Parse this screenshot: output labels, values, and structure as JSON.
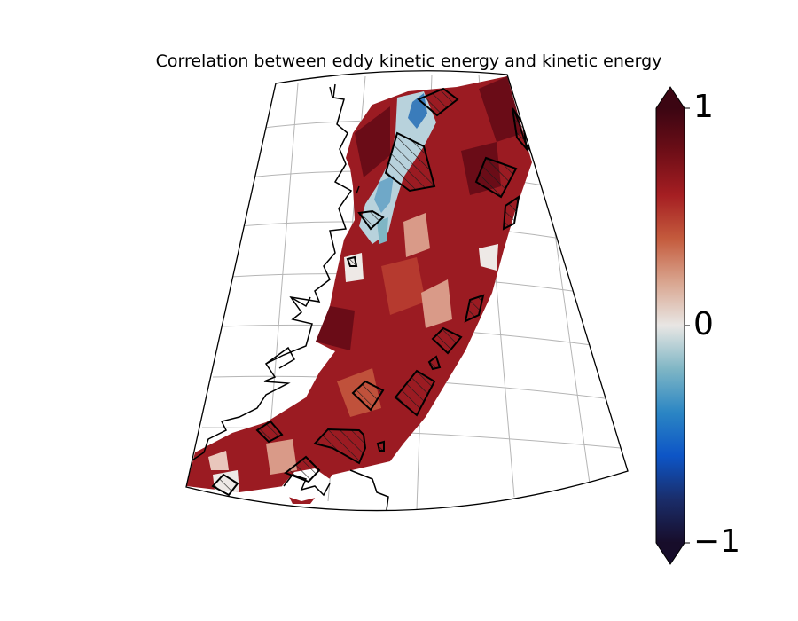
{
  "title": "Correlation between eddy kinetic energy and kinetic energy",
  "colorbar": {
    "min": -1,
    "max": 1,
    "ticks": [
      {
        "value": 1,
        "label": "1"
      },
      {
        "value": 0,
        "label": "0"
      },
      {
        "value": -1,
        "label": "−1"
      }
    ],
    "extend": "both",
    "colormap": [
      "#170d2a",
      "#1a2d6a",
      "#0d55c6",
      "#2b86c4",
      "#7fb6c5",
      "#e8e6e4",
      "#d9a58f",
      "#c45b3d",
      "#a51e22",
      "#6e0e17",
      "#3b0512"
    ]
  },
  "map": {
    "field_colors": {
      "dominant": "#9b1b22",
      "light": "#d99a88",
      "neutral": "#eee9e6",
      "negative_light": "#b8d2dc",
      "negative": "#3a7cbb",
      "dark": "#6a0c17"
    },
    "hatched_region_count": 17
  }
}
